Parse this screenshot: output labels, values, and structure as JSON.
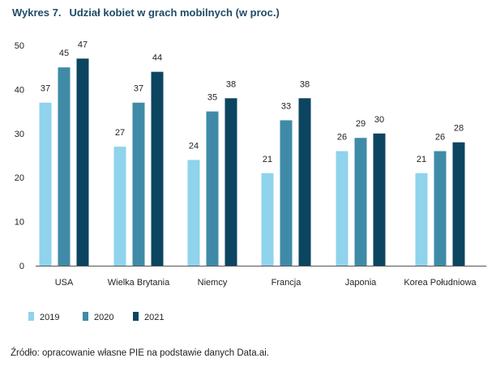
{
  "figure_label": "Wykres 7.",
  "title_text": "Udział kobiet w grach mobilnych (w proc.)",
  "source": "Źródło: opracowanie własne PIE na podstawie danych Data.ai.",
  "chart_data": {
    "type": "bar",
    "title": "Wykres 7.   Udział kobiet w grach mobilnych (w proc.)",
    "xlabel": "",
    "ylabel": "",
    "ylim": [
      0,
      50
    ],
    "yticks": [
      0,
      10,
      20,
      30,
      40,
      50
    ],
    "grid": false,
    "legend_position": "bottom-left",
    "categories": [
      "USA",
      "Wielka Brytania",
      "Niemcy",
      "Francja",
      "Japonia",
      "Korea Południowa"
    ],
    "series": [
      {
        "name": "2019",
        "color": "#8fd3ec",
        "values": [
          37,
          27,
          24,
          21,
          26,
          21
        ]
      },
      {
        "name": "2020",
        "color": "#3f8ba7",
        "values": [
          45,
          37,
          35,
          33,
          29,
          26
        ]
      },
      {
        "name": "2021",
        "color": "#0c4560",
        "values": [
          47,
          44,
          38,
          38,
          30,
          28
        ]
      }
    ]
  }
}
